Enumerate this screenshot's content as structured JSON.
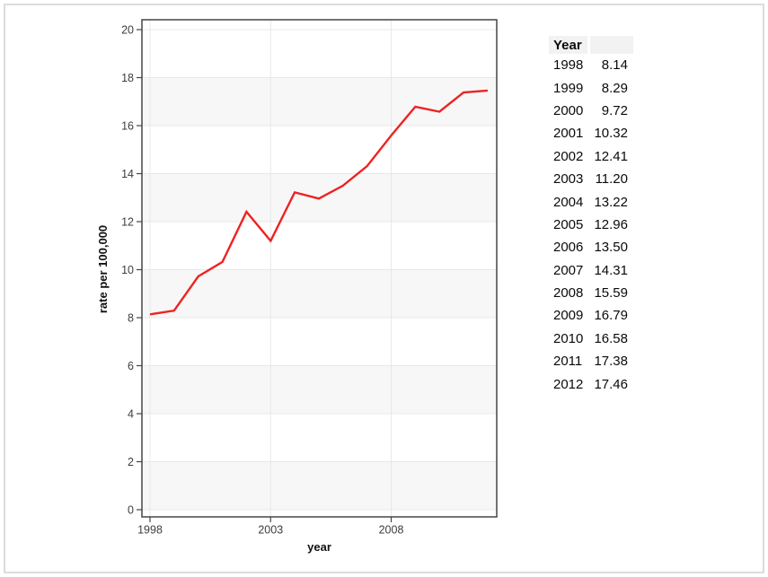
{
  "chart_data": {
    "type": "line",
    "title": "",
    "x": [
      1998,
      1999,
      2000,
      2001,
      2002,
      2003,
      2004,
      2005,
      2006,
      2007,
      2008,
      2009,
      2010,
      2011,
      2012
    ],
    "series": [
      {
        "name": "rate per 100,000",
        "values": [
          8.14,
          8.29,
          9.72,
          10.32,
          12.41,
          11.2,
          13.22,
          12.96,
          13.5,
          14.31,
          15.59,
          16.79,
          16.58,
          17.38,
          17.46
        ]
      }
    ],
    "xlabel": "year",
    "ylabel": "rate per 100,000",
    "ylim": [
      0,
      20
    ],
    "yticks": [
      0,
      2,
      4,
      6,
      8,
      10,
      12,
      14,
      16,
      18,
      20
    ],
    "xticks": [
      1998,
      2003,
      2008
    ],
    "grid": true,
    "legend_position": "none",
    "line_color": "#ee2222",
    "band_color": "#f7f7f7",
    "grid_color": "#e8e8e8",
    "axis_color": "#454545"
  },
  "table": {
    "header": [
      "Year",
      ""
    ],
    "header_bg": "#f2f2f2",
    "rows": [
      [
        "1998",
        "8.14"
      ],
      [
        "1999",
        "8.29"
      ],
      [
        "2000",
        "9.72"
      ],
      [
        "2001",
        "10.32"
      ],
      [
        "2002",
        "12.41"
      ],
      [
        "2003",
        "11.20"
      ],
      [
        "2004",
        "13.22"
      ],
      [
        "2005",
        "12.96"
      ],
      [
        "2006",
        "13.50"
      ],
      [
        "2007",
        "14.31"
      ],
      [
        "2008",
        "15.59"
      ],
      [
        "2009",
        "16.79"
      ],
      [
        "2010",
        "16.58"
      ],
      [
        "2011",
        "17.38"
      ],
      [
        "2012",
        "17.46"
      ]
    ]
  }
}
